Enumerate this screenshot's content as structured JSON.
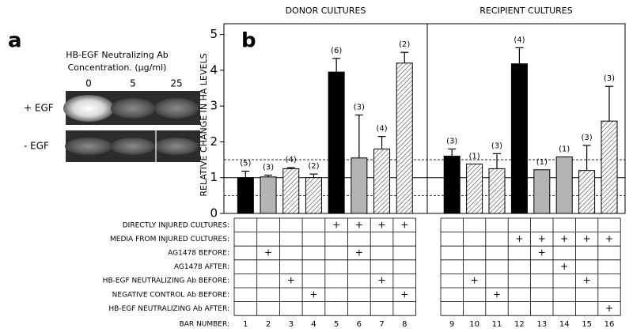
{
  "gel_panel": {
    "label": "a",
    "title_lines": [
      "HB-EGF Neutralizing Ab",
      "Concentration. (µg/ml)"
    ],
    "columns": [
      "0",
      "5",
      "25"
    ],
    "rows": [
      "+ EGF",
      "- EGF"
    ]
  },
  "chart_data": {
    "type": "bar",
    "panel_label": "b",
    "y_label": "RELATIVE CHANGE IN  HA  LEVELS",
    "ylim": [
      0,
      5.3
    ],
    "yticks": [
      0,
      1,
      2,
      3,
      4,
      5
    ],
    "reference_lines": [
      {
        "value": 1,
        "dashed": false
      },
      {
        "value": 0.5,
        "dashed": true
      },
      {
        "value": 1.5,
        "dashed": true
      }
    ],
    "groups": [
      {
        "title": "DONOR CULTURES",
        "categories": [
          "1",
          "2",
          "3",
          "4",
          "5",
          "6",
          "7",
          "8"
        ],
        "values": [
          1.0,
          1.02,
          1.25,
          1.0,
          3.95,
          1.55,
          1.8,
          4.2
        ],
        "errors": [
          0.18,
          0.05,
          0.03,
          0.1,
          0.38,
          1.2,
          0.35,
          0.3
        ],
        "n_labels": [
          "(5)",
          "(3)",
          "(4)",
          "(2)",
          "(6)",
          "(3)",
          "(4)",
          "(2)"
        ],
        "fills": [
          "#000000",
          "#b4b4b4",
          "hatch",
          "hatch",
          "#000000",
          "#b4b4b4",
          "hatch",
          "hatch"
        ]
      },
      {
        "title": "RECIPIENT CULTURES",
        "categories": [
          "9",
          "10",
          "11",
          "12",
          "13",
          "14",
          "15",
          "16"
        ],
        "values": [
          1.6,
          1.38,
          1.25,
          4.18,
          1.22,
          1.58,
          1.2,
          2.58
        ],
        "errors": [
          0.2,
          null,
          0.42,
          0.45,
          null,
          null,
          0.7,
          0.97
        ],
        "n_labels": [
          "(3)",
          "(1)",
          "(3)",
          "(4)",
          "(1)",
          "(1)",
          "(3)",
          "(3)"
        ],
        "fills": [
          "#000000",
          "hatch",
          "hatch",
          "#000000",
          "#b4b4b4",
          "#b4b4b4",
          "hatch",
          "hatch"
        ]
      }
    ],
    "category_label": "BAR NUMBER:",
    "conditions": [
      {
        "label": "DIRECTLY INJURED CULTURES:",
        "marks": [
          null,
          null,
          null,
          null,
          "+",
          "+",
          "+",
          "+",
          null,
          null,
          null,
          null,
          null,
          null,
          null,
          null
        ]
      },
      {
        "label": "MEDIA FROM INJURED CULTURES:",
        "marks": [
          null,
          null,
          null,
          null,
          null,
          null,
          null,
          null,
          null,
          null,
          null,
          "+",
          "+",
          "+",
          "+",
          "+"
        ]
      },
      {
        "label": "AG1478  BEFORE:",
        "marks": [
          null,
          "+",
          null,
          null,
          null,
          "+",
          null,
          null,
          null,
          null,
          null,
          null,
          "+",
          null,
          null,
          null
        ]
      },
      {
        "label": "AG1478  AFTER:",
        "marks": [
          null,
          null,
          null,
          null,
          null,
          null,
          null,
          null,
          null,
          null,
          null,
          null,
          null,
          "+",
          null,
          null
        ]
      },
      {
        "label": "HB-EGF NEUTRALIZING Ab BEFORE:",
        "marks": [
          null,
          null,
          "+",
          null,
          null,
          null,
          "+",
          null,
          null,
          "+",
          null,
          null,
          null,
          null,
          "+",
          null
        ]
      },
      {
        "label": "NEGATIVE CONTROL Ab BEFORE:",
        "marks": [
          null,
          null,
          null,
          "+",
          null,
          null,
          null,
          "+",
          null,
          null,
          "+",
          null,
          null,
          null,
          null,
          null
        ]
      },
      {
        "label": "HB-EGF NEUTRALIZING Ab  AFTER:",
        "marks": [
          null,
          null,
          null,
          null,
          null,
          null,
          null,
          null,
          null,
          null,
          null,
          null,
          null,
          null,
          null,
          "+"
        ]
      }
    ]
  }
}
